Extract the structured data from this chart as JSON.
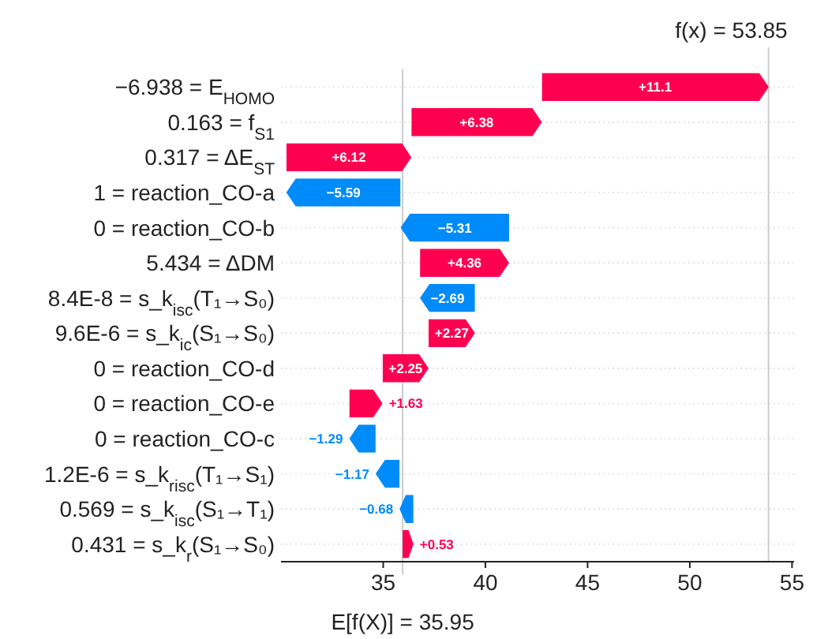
{
  "chart_data": {
    "type": "bar",
    "orientation": "horizontal",
    "categories": [
      "−6.938 = E$_{HOMO}$",
      "0.163 = f$_{S1}$",
      "0.317 = ΔE$_{ST}$",
      "1 = reaction_CO-a",
      "0 = reaction_CO-b",
      "5.434 = ΔDM",
      "8.4E-8 = s_k$_{isc}$(T₁→S₀)",
      "9.6E-6 = s_k$_{ic}$(S₁→S₀)",
      "0 = reaction_CO-d",
      "0 = reaction_CO-e",
      "0 = reaction_CO-c",
      "1.2E-6 = s_k$_{risc}$(T₁→S₁)",
      "0.569 = s_k$_{isc}$(S₁→T₁)",
      "0.431 = s_k$_{r}$(S₁→S₀)"
    ],
    "values": [
      11.1,
      6.38,
      6.12,
      -5.59,
      -5.31,
      4.36,
      -2.69,
      2.27,
      2.25,
      1.63,
      -1.29,
      -1.17,
      -0.68,
      0.53
    ],
    "base": [
      42.76,
      36.38,
      30.26,
      35.85,
      41.16,
      36.8,
      39.49,
      37.22,
      34.97,
      33.34,
      34.63,
      35.8,
      36.48,
      35.95
    ],
    "colors": [
      "#ff0051",
      "#ff0051",
      "#ff0051",
      "#008bfb",
      "#008bfb",
      "#ff0051",
      "#008bfb",
      "#ff0051",
      "#ff0051",
      "#ff0051",
      "#008bfb",
      "#008bfb",
      "#008bfb",
      "#ff0051"
    ],
    "value_labels": [
      "+11.1",
      "+6.38",
      "+6.12",
      "−5.59",
      "−5.31",
      "+4.36",
      "−2.69",
      "+2.27",
      "+2.25",
      "+1.63",
      "−1.29",
      "−1.17",
      "−0.68",
      "+0.53"
    ],
    "xlim": [
      30,
      55.1
    ],
    "xticks": [
      35,
      40,
      45,
      50,
      55
    ],
    "grid": "y",
    "ref_lines": [
      {
        "axis": "x",
        "value": 35.95,
        "label": "E[f(X)] = 35.95",
        "color": "#cccccc"
      },
      {
        "axis": "x",
        "value": 53.85,
        "label": "f(x) = 53.85",
        "color": "#cccccc"
      }
    ]
  }
}
